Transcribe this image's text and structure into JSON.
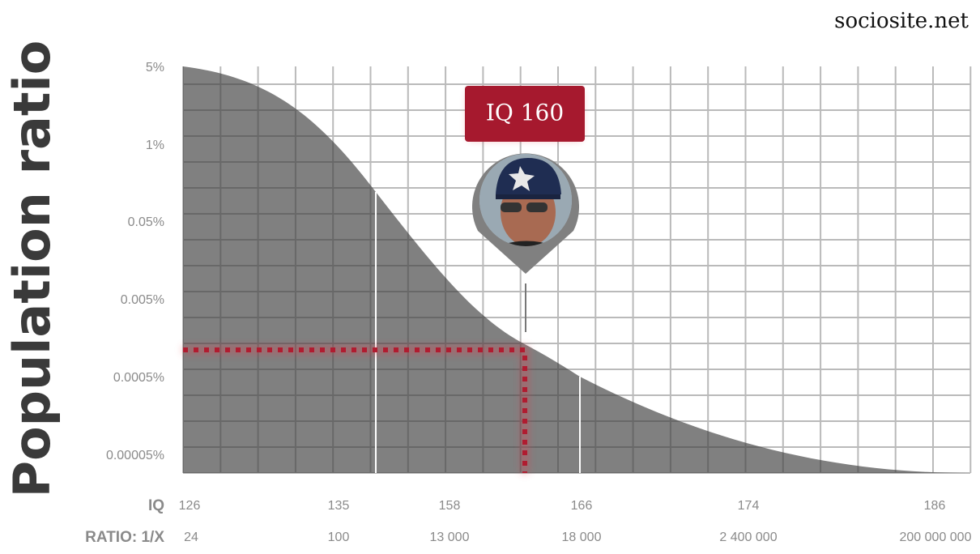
{
  "brand": "sociosite.net",
  "y_axis": {
    "title": "Population ratio",
    "ticks": [
      "5%",
      "1%",
      "0.05%",
      "0.005%",
      "0.0005%",
      "0.00005%"
    ]
  },
  "x_rows": [
    {
      "label": "IQ",
      "values": [
        "126",
        "135",
        "158",
        "166",
        "174",
        "186"
      ]
    },
    {
      "label": "RATIO: 1/X",
      "values": [
        "24",
        "100",
        "13 000",
        "18 000",
        "2 400 000",
        "200 000 000"
      ]
    }
  ],
  "marker": {
    "label": "IQ 160"
  }
}
